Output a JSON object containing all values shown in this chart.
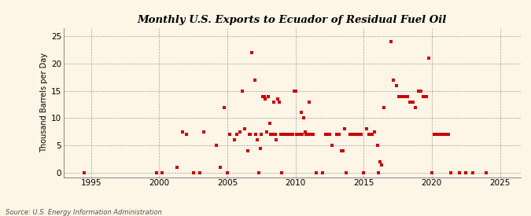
{
  "title": "Monthly U.S. Exports to Ecuador of Residual Fuel Oil",
  "ylabel": "Thousand Barrels per Day",
  "source_text": "Source: U.S. Energy Information Administration",
  "background_color": "#fdf5e6",
  "marker_color": "#cc0000",
  "xlim": [
    1993.0,
    2026.5
  ],
  "ylim": [
    -0.8,
    26.5
  ],
  "xticks": [
    1995,
    2000,
    2005,
    2010,
    2015,
    2020,
    2025
  ],
  "yticks": [
    0,
    5,
    10,
    15,
    20,
    25
  ],
  "data_points": [
    [
      1994.5,
      0.0
    ],
    [
      1999.8,
      0.0
    ],
    [
      2000.2,
      0.0
    ],
    [
      2001.3,
      1.0
    ],
    [
      2001.7,
      7.5
    ],
    [
      2002.0,
      7.0
    ],
    [
      2002.5,
      0.0
    ],
    [
      2003.0,
      0.0
    ],
    [
      2003.3,
      7.5
    ],
    [
      2004.2,
      5.0
    ],
    [
      2004.5,
      1.0
    ],
    [
      2004.8,
      12.0
    ],
    [
      2005.0,
      0.0
    ],
    [
      2005.2,
      7.0
    ],
    [
      2005.5,
      6.0
    ],
    [
      2005.7,
      7.0
    ],
    [
      2005.9,
      7.5
    ],
    [
      2006.1,
      15.0
    ],
    [
      2006.3,
      8.0
    ],
    [
      2006.5,
      4.0
    ],
    [
      2006.6,
      7.0
    ],
    [
      2006.7,
      7.0
    ],
    [
      2006.8,
      22.0
    ],
    [
      2007.0,
      17.0
    ],
    [
      2007.1,
      7.0
    ],
    [
      2007.2,
      6.0
    ],
    [
      2007.3,
      0.0
    ],
    [
      2007.4,
      4.5
    ],
    [
      2007.5,
      7.0
    ],
    [
      2007.6,
      14.0
    ],
    [
      2007.7,
      14.0
    ],
    [
      2007.8,
      13.5
    ],
    [
      2007.9,
      7.5
    ],
    [
      2008.0,
      14.0
    ],
    [
      2008.1,
      9.0
    ],
    [
      2008.2,
      7.0
    ],
    [
      2008.3,
      7.0
    ],
    [
      2008.4,
      13.0
    ],
    [
      2008.5,
      7.0
    ],
    [
      2008.6,
      6.0
    ],
    [
      2008.7,
      13.5
    ],
    [
      2008.8,
      13.0
    ],
    [
      2008.9,
      7.0
    ],
    [
      2009.0,
      0.0
    ],
    [
      2009.1,
      7.0
    ],
    [
      2009.2,
      7.0
    ],
    [
      2009.3,
      7.0
    ],
    [
      2009.4,
      7.0
    ],
    [
      2009.5,
      7.0
    ],
    [
      2009.6,
      7.0
    ],
    [
      2009.7,
      7.0
    ],
    [
      2009.8,
      7.0
    ],
    [
      2009.9,
      15.0
    ],
    [
      2010.0,
      15.0
    ],
    [
      2010.1,
      7.0
    ],
    [
      2010.2,
      7.0
    ],
    [
      2010.3,
      7.0
    ],
    [
      2010.4,
      11.0
    ],
    [
      2010.5,
      7.0
    ],
    [
      2010.6,
      10.0
    ],
    [
      2010.7,
      7.5
    ],
    [
      2010.8,
      7.0
    ],
    [
      2010.9,
      7.0
    ],
    [
      2011.0,
      13.0
    ],
    [
      2011.1,
      7.0
    ],
    [
      2011.2,
      7.0
    ],
    [
      2011.3,
      7.0
    ],
    [
      2011.5,
      0.0
    ],
    [
      2012.0,
      0.0
    ],
    [
      2012.2,
      7.0
    ],
    [
      2012.3,
      7.0
    ],
    [
      2012.5,
      7.0
    ],
    [
      2012.7,
      5.0
    ],
    [
      2013.0,
      7.0
    ],
    [
      2013.1,
      7.0
    ],
    [
      2013.2,
      7.0
    ],
    [
      2013.4,
      4.0
    ],
    [
      2013.5,
      4.0
    ],
    [
      2013.6,
      8.0
    ],
    [
      2013.7,
      0.0
    ],
    [
      2014.0,
      7.0
    ],
    [
      2014.2,
      7.0
    ],
    [
      2014.4,
      7.0
    ],
    [
      2014.6,
      7.0
    ],
    [
      2014.8,
      7.0
    ],
    [
      2015.0,
      0.0
    ],
    [
      2015.2,
      8.0
    ],
    [
      2015.4,
      7.0
    ],
    [
      2015.6,
      7.0
    ],
    [
      2015.8,
      7.5
    ],
    [
      2016.0,
      5.0
    ],
    [
      2016.1,
      0.0
    ],
    [
      2016.2,
      2.0
    ],
    [
      2016.3,
      1.5
    ],
    [
      2016.5,
      12.0
    ],
    [
      2017.0,
      24.0
    ],
    [
      2017.2,
      17.0
    ],
    [
      2017.4,
      16.0
    ],
    [
      2017.6,
      14.0
    ],
    [
      2017.8,
      14.0
    ],
    [
      2018.0,
      14.0
    ],
    [
      2018.2,
      14.0
    ],
    [
      2018.4,
      13.0
    ],
    [
      2018.6,
      13.0
    ],
    [
      2018.8,
      12.0
    ],
    [
      2019.0,
      15.0
    ],
    [
      2019.2,
      15.0
    ],
    [
      2019.4,
      14.0
    ],
    [
      2019.6,
      14.0
    ],
    [
      2019.8,
      21.0
    ],
    [
      2020.0,
      0.0
    ],
    [
      2020.2,
      7.0
    ],
    [
      2020.4,
      7.0
    ],
    [
      2020.6,
      7.0
    ],
    [
      2020.8,
      7.0
    ],
    [
      2021.0,
      7.0
    ],
    [
      2021.2,
      7.0
    ],
    [
      2021.4,
      0.0
    ],
    [
      2022.0,
      0.0
    ],
    [
      2022.5,
      0.0
    ],
    [
      2023.0,
      0.0
    ],
    [
      2024.0,
      0.0
    ]
  ]
}
